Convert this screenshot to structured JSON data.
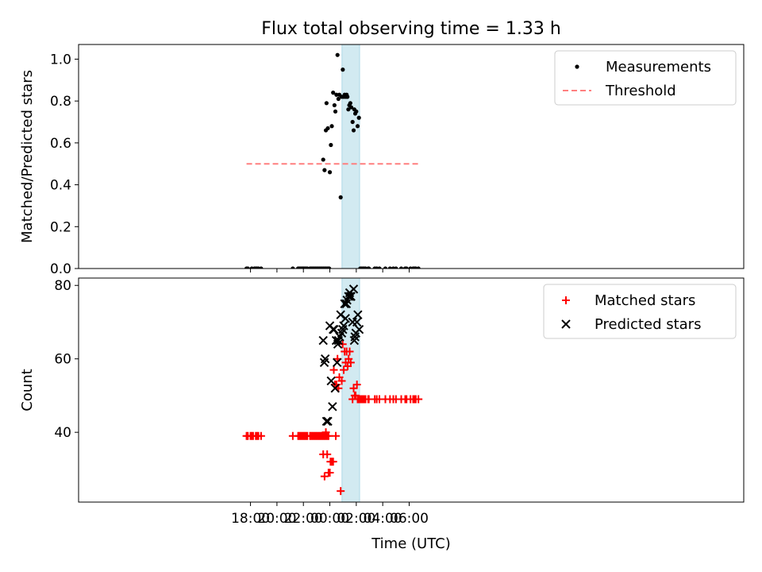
{
  "chart_data": {
    "title": "Flux total observing time = 1.33 h",
    "xlabel": "Time (UTC)",
    "x_unit": "hours relative to 00:00 UTC",
    "xlim": [
      -19.0,
      31.3
    ],
    "x_ticks": [
      -6,
      -4,
      -2,
      0,
      2,
      4,
      6
    ],
    "x_tick_labels": [
      "18:00",
      "20:00",
      "22:00",
      "00:00",
      "02:00",
      "04:00",
      "06:00"
    ],
    "observing_window": [
      0.92,
      2.25
    ],
    "window_color": "#add8e6",
    "panels": [
      {
        "id": "ratio",
        "type": "scatter",
        "ylabel": "Matched/Predicted stars",
        "ylim": [
          0,
          1.07
        ],
        "y_ticks": [
          0.0,
          0.2,
          0.4,
          0.6,
          0.8,
          1.0
        ],
        "y_tick_labels": [
          "0.0",
          "0.2",
          "0.4",
          "0.6",
          "0.8",
          "1.0"
        ],
        "legend_position": "top-right",
        "series": [
          {
            "name": "Measurements",
            "marker": "dot",
            "color": "#000000",
            "points": [
              [
                -6.3,
                0
              ],
              [
                -6.2,
                0
              ],
              [
                -5.9,
                0
              ],
              [
                -5.7,
                0
              ],
              [
                -5.6,
                0
              ],
              [
                -5.5,
                0
              ],
              [
                -5.4,
                0
              ],
              [
                -5.2,
                0
              ],
              [
                -2.8,
                0
              ],
              [
                -2.4,
                0
              ],
              [
                -2.3,
                0
              ],
              [
                -2.2,
                0
              ],
              [
                -2.1,
                0
              ],
              [
                -2.0,
                0
              ],
              [
                -1.9,
                0
              ],
              [
                -1.8,
                0
              ],
              [
                -1.7,
                0
              ],
              [
                -1.5,
                0
              ],
              [
                -1.4,
                0
              ],
              [
                -1.3,
                0
              ],
              [
                -1.2,
                0
              ],
              [
                -1.1,
                0
              ],
              [
                -1.0,
                0
              ],
              [
                -0.9,
                0
              ],
              [
                -0.8,
                0
              ],
              [
                -0.7,
                0
              ],
              [
                -0.6,
                0
              ],
              [
                -0.5,
                0
              ],
              [
                -0.4,
                0
              ],
              [
                -0.3,
                0
              ],
              [
                -0.2,
                0
              ],
              [
                -0.1,
                0
              ],
              [
                -0.5,
                0.52
              ],
              [
                -0.4,
                0.47
              ],
              [
                -0.3,
                0.66
              ],
              [
                -0.25,
                0.79
              ],
              [
                -0.15,
                0.67
              ],
              [
                -0.05,
                0
              ],
              [
                0.0,
                0.46
              ],
              [
                0.08,
                0.59
              ],
              [
                0.15,
                0.68
              ],
              [
                0.25,
                0.84
              ],
              [
                0.35,
                0.78
              ],
              [
                0.42,
                0.75
              ],
              [
                0.5,
                0.83
              ],
              [
                0.58,
                1.02
              ],
              [
                0.65,
                0.81
              ],
              [
                0.72,
                0.83
              ],
              [
                0.82,
                0.34
              ],
              [
                0.9,
                0.82
              ],
              [
                0.98,
                0.95
              ],
              [
                1.05,
                0.82
              ],
              [
                1.12,
                0.83
              ],
              [
                1.2,
                0.82
              ],
              [
                1.27,
                0.83
              ],
              [
                1.33,
                0.82
              ],
              [
                1.4,
                0.76
              ],
              [
                1.47,
                0.78
              ],
              [
                1.55,
                0.79
              ],
              [
                1.62,
                0.77
              ],
              [
                1.72,
                0.7
              ],
              [
                1.8,
                0.66
              ],
              [
                1.85,
                0.76
              ],
              [
                1.92,
                0.74
              ],
              [
                2.0,
                0.75
              ],
              [
                2.1,
                0.68
              ],
              [
                2.2,
                0.72
              ],
              [
                2.3,
                0
              ],
              [
                2.4,
                0
              ],
              [
                2.5,
                0
              ],
              [
                2.6,
                0
              ],
              [
                2.7,
                0
              ],
              [
                2.9,
                0
              ],
              [
                2.95,
                0
              ],
              [
                3.4,
                0
              ],
              [
                3.55,
                0
              ],
              [
                3.75,
                0
              ],
              [
                4.2,
                0
              ],
              [
                4.55,
                0
              ],
              [
                4.8,
                0
              ],
              [
                5.0,
                0
              ],
              [
                5.4,
                0
              ],
              [
                5.7,
                0
              ],
              [
                5.8,
                0
              ],
              [
                6.1,
                0
              ],
              [
                6.3,
                0
              ],
              [
                6.4,
                0
              ],
              [
                6.5,
                0
              ],
              [
                6.7,
                0
              ]
            ]
          },
          {
            "name": "Threshold",
            "marker": "dashed-line",
            "color": "#ff7f7f",
            "points": [
              [
                -6.3,
                0.5
              ],
              [
                6.7,
                0.5
              ]
            ]
          }
        ]
      },
      {
        "id": "counts",
        "type": "scatter",
        "ylabel": "Count",
        "ylim": [
          21,
          82
        ],
        "y_ticks": [
          40,
          60,
          80
        ],
        "y_tick_labels": [
          "40",
          "60",
          "80"
        ],
        "legend_position": "top-right",
        "series": [
          {
            "name": "Matched stars",
            "marker": "plus",
            "color": "#ff0000",
            "points": [
              [
                -6.3,
                39
              ],
              [
                -6.2,
                39
              ],
              [
                -6.0,
                39
              ],
              [
                -5.9,
                39
              ],
              [
                -5.8,
                39
              ],
              [
                -5.6,
                39
              ],
              [
                -5.5,
                39
              ],
              [
                -5.4,
                39
              ],
              [
                -5.2,
                39
              ],
              [
                -2.8,
                39
              ],
              [
                -2.4,
                39
              ],
              [
                -2.3,
                39
              ],
              [
                -2.2,
                39
              ],
              [
                -2.1,
                39
              ],
              [
                -2.0,
                39
              ],
              [
                -1.9,
                39
              ],
              [
                -1.8,
                39
              ],
              [
                -1.7,
                39
              ],
              [
                -1.5,
                39
              ],
              [
                -1.4,
                39
              ],
              [
                -1.3,
                39
              ],
              [
                -1.2,
                39
              ],
              [
                -1.1,
                39
              ],
              [
                -1.0,
                39
              ],
              [
                -0.9,
                39
              ],
              [
                -0.8,
                39
              ],
              [
                -0.7,
                39
              ],
              [
                -0.6,
                39
              ],
              [
                -0.5,
                39
              ],
              [
                -0.4,
                39
              ],
              [
                -0.3,
                39
              ],
              [
                -0.2,
                39
              ],
              [
                -0.1,
                39
              ],
              [
                -0.5,
                34
              ],
              [
                -0.4,
                28
              ],
              [
                -0.3,
                40
              ],
              [
                -0.2,
                34
              ],
              [
                -0.1,
                29
              ],
              [
                0.0,
                29
              ],
              [
                0.05,
                32
              ],
              [
                0.15,
                32
              ],
              [
                0.25,
                32
              ],
              [
                0.3,
                57
              ],
              [
                0.38,
                53
              ],
              [
                0.45,
                39
              ],
              [
                0.5,
                53
              ],
              [
                0.58,
                60
              ],
              [
                0.65,
                52
              ],
              [
                0.72,
                55
              ],
              [
                0.82,
                24
              ],
              [
                0.9,
                54
              ],
              [
                0.97,
                64
              ],
              [
                1.05,
                57
              ],
              [
                1.12,
                62
              ],
              [
                1.2,
                59
              ],
              [
                1.27,
                62
              ],
              [
                1.35,
                58
              ],
              [
                1.42,
                60
              ],
              [
                1.5,
                62
              ],
              [
                1.58,
                59
              ],
              [
                1.72,
                49
              ],
              [
                1.8,
                52
              ],
              [
                1.88,
                50
              ],
              [
                1.95,
                50
              ],
              [
                2.05,
                53
              ],
              [
                2.1,
                49
              ],
              [
                2.2,
                49
              ],
              [
                2.3,
                49
              ],
              [
                2.4,
                49
              ],
              [
                2.5,
                49
              ],
              [
                2.6,
                49
              ],
              [
                2.7,
                49
              ],
              [
                2.9,
                49
              ],
              [
                2.95,
                49
              ],
              [
                3.4,
                49
              ],
              [
                3.55,
                49
              ],
              [
                3.75,
                49
              ],
              [
                4.2,
                49
              ],
              [
                4.55,
                49
              ],
              [
                4.8,
                49
              ],
              [
                5.0,
                49
              ],
              [
                5.4,
                49
              ],
              [
                5.7,
                49
              ],
              [
                5.8,
                49
              ],
              [
                6.1,
                49
              ],
              [
                6.3,
                49
              ],
              [
                6.4,
                49
              ],
              [
                6.5,
                49
              ],
              [
                6.7,
                49
              ]
            ]
          },
          {
            "name": "Predicted stars",
            "marker": "x",
            "color": "#000000",
            "points": [
              [
                -0.5,
                65
              ],
              [
                -0.42,
                59
              ],
              [
                -0.35,
                60
              ],
              [
                -0.25,
                43
              ],
              [
                -0.15,
                43
              ],
              [
                0.0,
                69
              ],
              [
                0.1,
                54
              ],
              [
                0.2,
                47
              ],
              [
                0.25,
                68
              ],
              [
                0.32,
                68
              ],
              [
                0.4,
                52
              ],
              [
                0.48,
                65
              ],
              [
                0.55,
                59
              ],
              [
                0.6,
                64
              ],
              [
                0.65,
                65
              ],
              [
                0.75,
                66
              ],
              [
                0.82,
                72
              ],
              [
                0.9,
                67
              ],
              [
                0.98,
                68
              ],
              [
                1.05,
                69
              ],
              [
                1.12,
                75
              ],
              [
                1.18,
                71
              ],
              [
                1.25,
                75
              ],
              [
                1.3,
                76
              ],
              [
                1.42,
                77
              ],
              [
                1.5,
                78
              ],
              [
                1.55,
                77
              ],
              [
                1.6,
                77
              ],
              [
                1.72,
                70
              ],
              [
                1.8,
                79
              ],
              [
                1.85,
                65
              ],
              [
                1.9,
                66
              ],
              [
                1.97,
                67
              ],
              [
                2.05,
                70
              ],
              [
                2.12,
                72
              ],
              [
                2.22,
                68
              ]
            ]
          }
        ]
      }
    ]
  }
}
